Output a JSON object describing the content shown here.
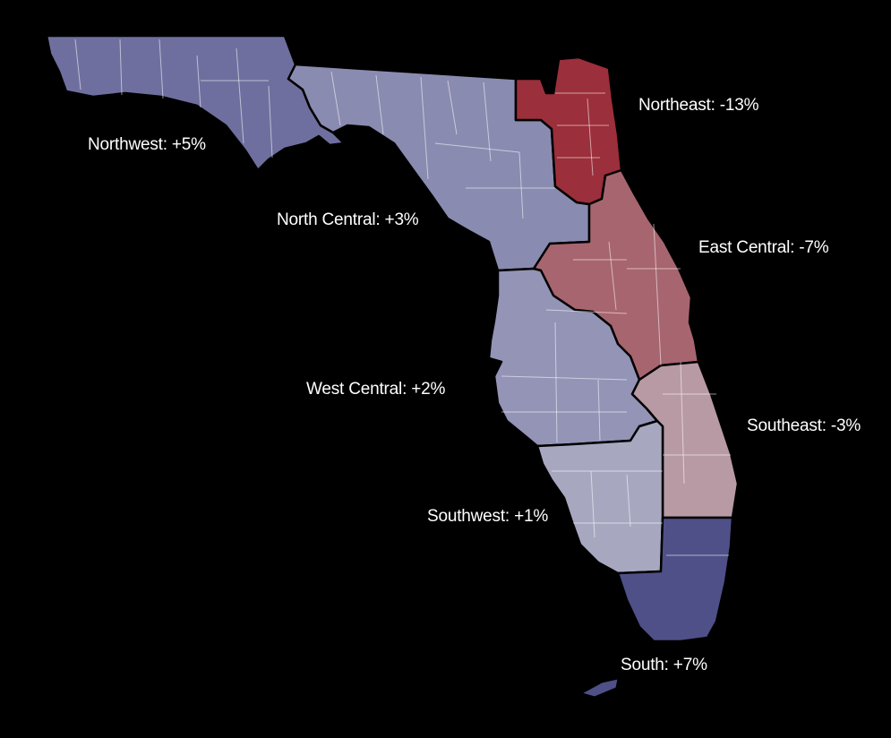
{
  "regions": [
    {
      "key": "northwest",
      "label": "Northwest: +5%",
      "change_pct": 5,
      "color": "#6f6f9f"
    },
    {
      "key": "north_central",
      "label": "North Central: +3%",
      "change_pct": 3,
      "color": "#8a8bb0"
    },
    {
      "key": "northeast",
      "label": "Northeast: -13%",
      "change_pct": -13,
      "color": "#9b2f3b"
    },
    {
      "key": "east_central",
      "label": "East Central: -7%",
      "change_pct": -7,
      "color": "#a76570"
    },
    {
      "key": "west_central",
      "label": "West Central: +2%",
      "change_pct": 2,
      "color": "#9394b6"
    },
    {
      "key": "southeast",
      "label": "Southeast: -3%",
      "change_pct": -3,
      "color": "#b89aa4"
    },
    {
      "key": "southwest",
      "label": "Southwest: +1%",
      "change_pct": 1,
      "color": "#a7a8c0"
    },
    {
      "key": "south",
      "label": "South: +7%",
      "change_pct": 7,
      "color": "#4f5088"
    }
  ]
}
